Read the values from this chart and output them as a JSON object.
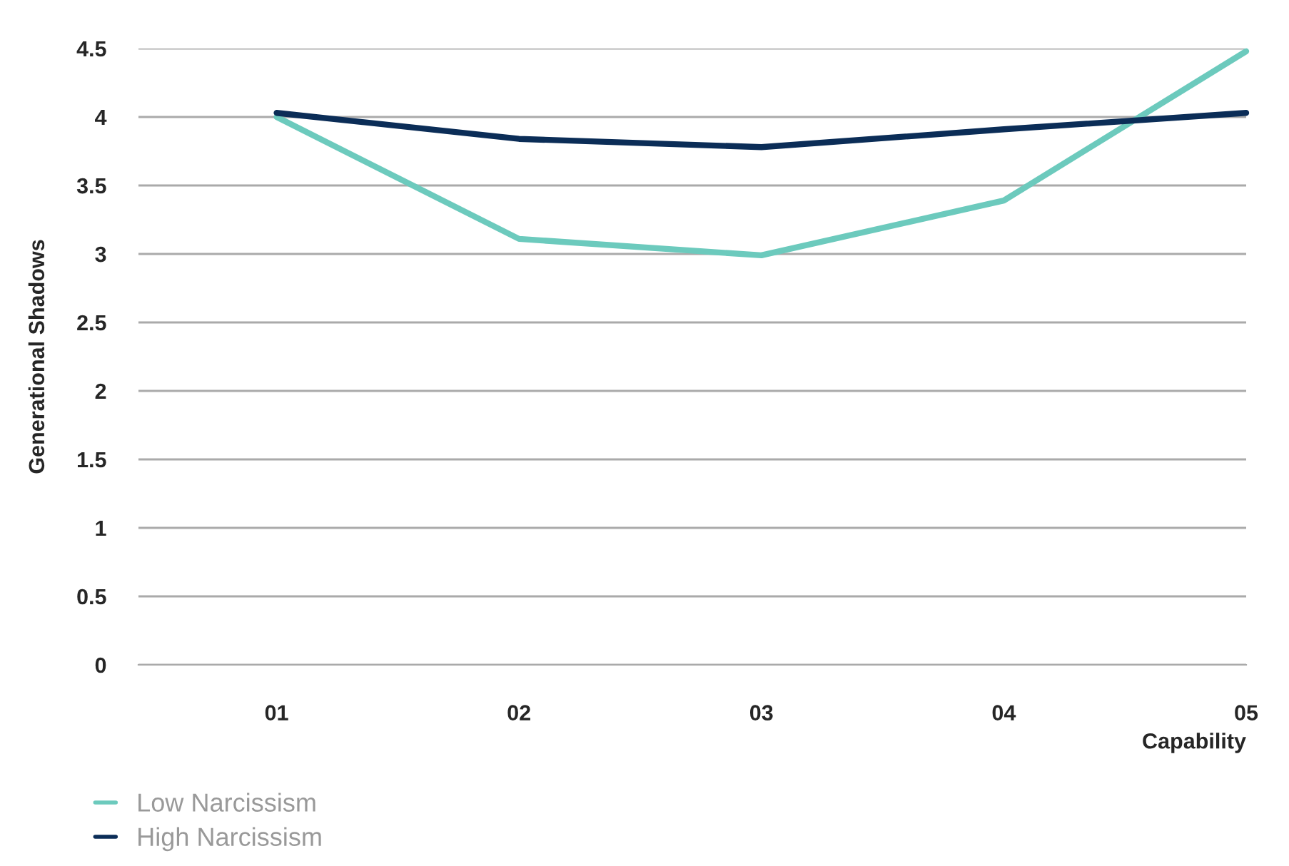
{
  "chart_data": {
    "type": "line",
    "xlabel": "Capability",
    "ylabel": "Generational Shadows",
    "x": [
      1,
      2,
      3,
      4,
      5
    ],
    "series": [
      {
        "name": "Low Narcissism",
        "color": "#6ccabd",
        "values": [
          4.0,
          3.11,
          2.99,
          3.39,
          4.48
        ]
      },
      {
        "name": "High Narcissism",
        "color": "#0b2d57",
        "values": [
          4.03,
          3.84,
          3.78,
          3.91,
          4.03
        ]
      }
    ],
    "xlim": [
      0.43,
      5
    ],
    "xticks": [
      {
        "value": 1,
        "label": "01"
      },
      {
        "value": 2,
        "label": "02"
      },
      {
        "value": 3,
        "label": "03"
      },
      {
        "value": 4,
        "label": "04"
      },
      {
        "value": 5,
        "label": "05"
      }
    ],
    "ylim": [
      0,
      4.5
    ],
    "yticks": [
      0,
      0.5,
      1,
      1.5,
      2,
      2.5,
      3,
      3.5,
      4,
      4.5
    ],
    "grid": "y",
    "legend": "bottom left",
    "marker": "none",
    "line_style": "solid"
  }
}
